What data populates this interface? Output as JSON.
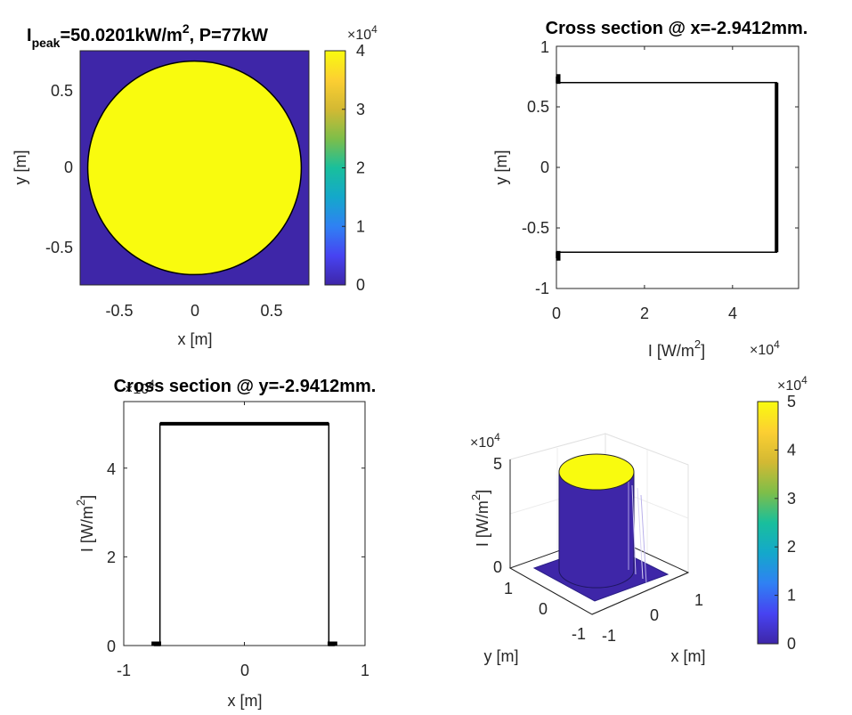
{
  "colors": {
    "background": "#ffffff",
    "parula_low": "#3E26A8",
    "parula_high": "#F9FB0E",
    "line": "#000000",
    "axis_text": "#262626"
  },
  "colormap": [
    "#3E26A8",
    "#4743F2",
    "#2F81F3",
    "#14A8CB",
    "#19BF9C",
    "#7EBE49",
    "#D3B933",
    "#FCCF32",
    "#F9FB0E"
  ],
  "chart_data": [
    {
      "type": "heatmap",
      "title_parts": {
        "main": "I",
        "sub": "peak",
        "mid": "=50.0201kW/m",
        "sup": "2",
        "tail": ", P=77kW"
      },
      "xlabel": "x [m]",
      "ylabel": "y [m]",
      "xlim": [
        -0.75,
        0.75
      ],
      "ylim": [
        -0.75,
        0.75
      ],
      "xticks": [
        "-0.5",
        "0",
        "0.5"
      ],
      "yticks": [
        "-0.5",
        "0",
        "0.5"
      ],
      "shape": "disk",
      "radius": 0.7,
      "inside_value": 50020.1,
      "outside_value": 0,
      "colorbar": {
        "ticks": [
          "0",
          "1",
          "2",
          "3",
          "4"
        ],
        "range": [
          0,
          4
        ],
        "exponent_base": "×10",
        "exponent": "4"
      }
    },
    {
      "type": "line",
      "title": "Cross section @ x=-2.9412mm.",
      "xlabel_parts": {
        "main": "I [W/m",
        "sup": "2",
        "tail": "]"
      },
      "ylabel": "y [m]",
      "xlim": [
        0,
        5.5
      ],
      "ylim": [
        -1,
        1
      ],
      "xticks": [
        "0",
        "2",
        "4"
      ],
      "yticks": [
        "-1",
        "-0.5",
        "0",
        "0.5",
        "1"
      ],
      "x_exponent_base": "×10",
      "x_exponent": "4",
      "x_values_e4": [
        0,
        0,
        5.0,
        5.0,
        0,
        0
      ],
      "y_values": [
        0.75,
        0.7,
        0.7,
        -0.7,
        -0.7,
        -0.75
      ]
    },
    {
      "type": "line",
      "title": "Cross section @ y=-2.9412mm.",
      "xlabel": "x [m]",
      "ylabel_parts": {
        "main": "I [W/m",
        "sup": "2",
        "tail": "]"
      },
      "xlim": [
        -1,
        1
      ],
      "ylim": [
        0,
        5.5
      ],
      "xticks": [
        "-1",
        "0",
        "1"
      ],
      "yticks": [
        "0",
        "2",
        "4"
      ],
      "y_exponent_base": "×10",
      "y_exponent": "4",
      "x_values": [
        -0.75,
        -0.7,
        -0.7,
        0.7,
        0.7,
        0.75
      ],
      "y_values_e4": [
        0,
        0,
        5.0,
        5.0,
        0,
        0
      ]
    },
    {
      "type": "surface",
      "xlabel": "x [m]",
      "ylabel": "y [m]",
      "zlabel_parts": {
        "main": "I [W/m",
        "sup": "2",
        "tail": "]"
      },
      "xticks": [
        "-1",
        "0",
        "1"
      ],
      "yticks": [
        "-1",
        "0",
        "1"
      ],
      "zticks": [
        "0",
        "5"
      ],
      "z_exponent_base": "×10",
      "z_exponent": "4",
      "radius": 0.7,
      "height_e4": 5.0,
      "colorbar": {
        "ticks": [
          "0",
          "1",
          "2",
          "3",
          "4",
          "5"
        ],
        "range": [
          0,
          5
        ],
        "exponent_base": "×10",
        "exponent": "4"
      }
    }
  ]
}
